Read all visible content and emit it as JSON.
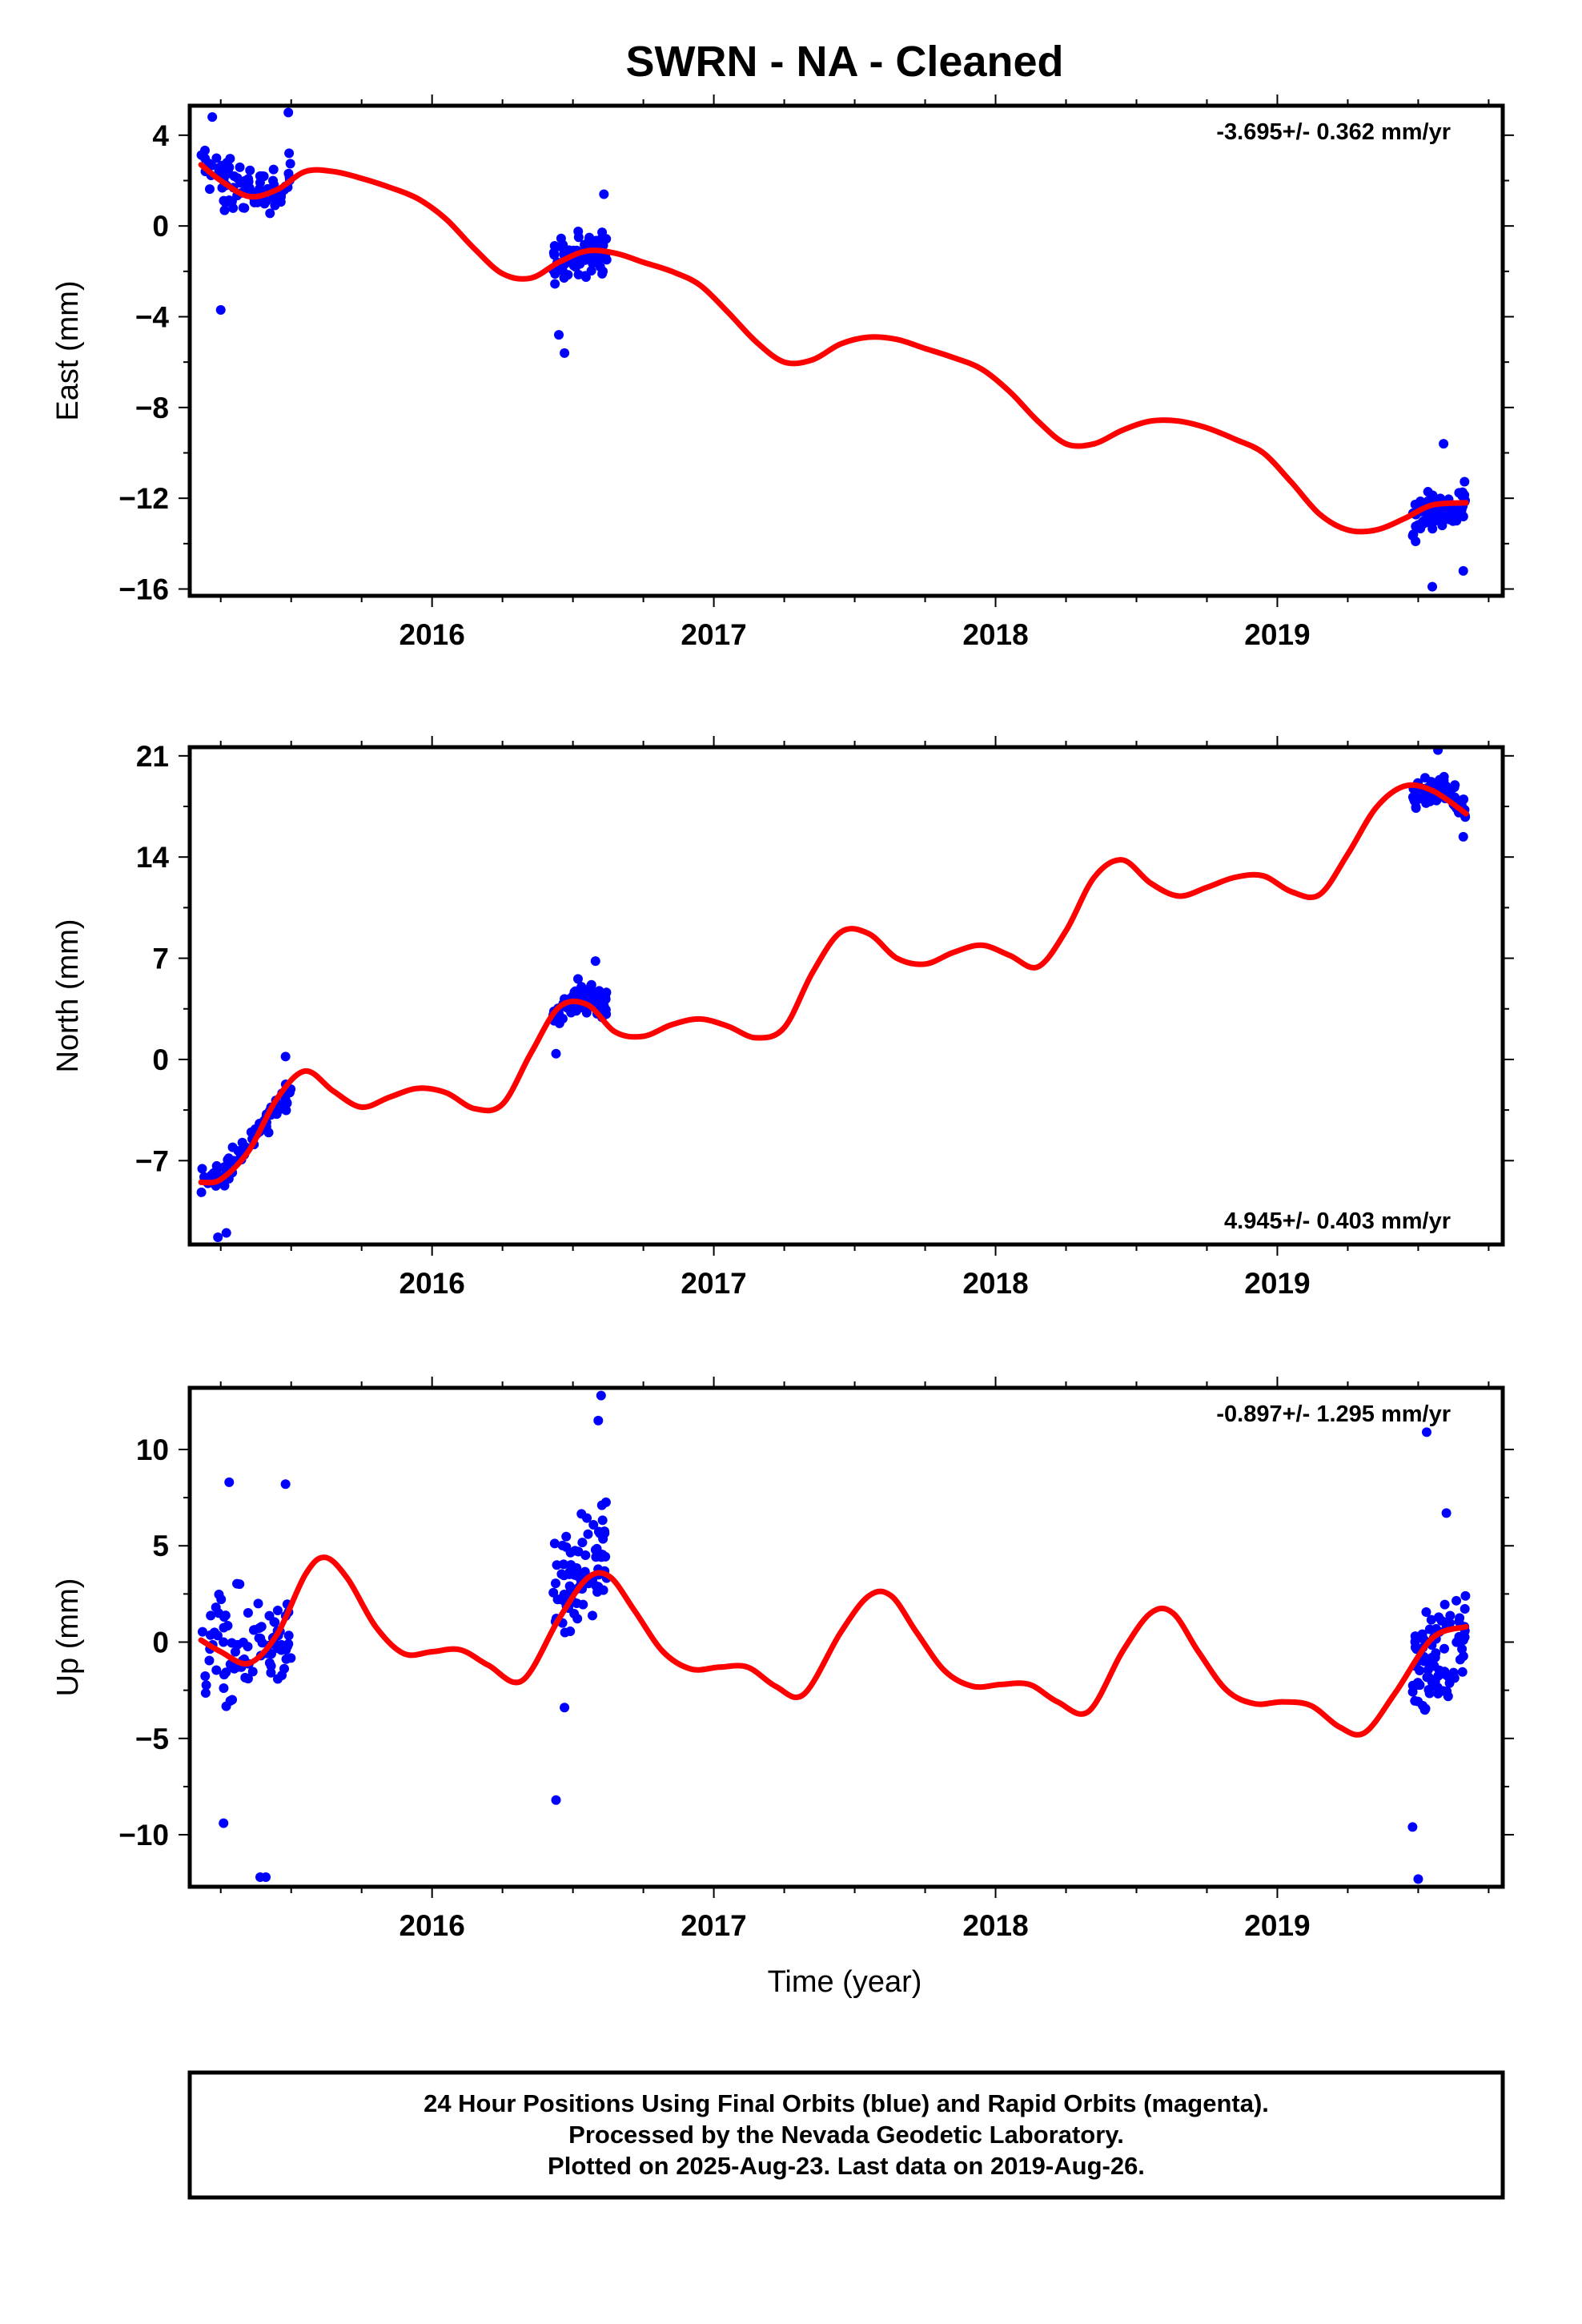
{
  "title": "SWRN  - NA - Cleaned",
  "colors": {
    "final_orbits": "#0000ff",
    "model_fit": "#ff0000",
    "frame": "#000000"
  },
  "footer": {
    "line1": "24 Hour Positions Using Final Orbits (blue) and Rapid Orbits (magenta).",
    "line2": "Processed by the Nevada Geodetic Laboratory.",
    "line3": "Plotted on 2025-Aug-23. Last data on 2019-Aug-26."
  },
  "chart_data": [
    {
      "type": "scatter",
      "component": "east",
      "ylabel": "East (mm)",
      "xlabel": "",
      "rate_label": "-3.695+/- 0.362 mm/yr",
      "rate_position": "top-right",
      "xlim": [
        2015.14,
        2019.8
      ],
      "ylim": [
        -16.3,
        5.3
      ],
      "yticks": [
        4,
        0,
        -4,
        -8,
        -12,
        -16
      ],
      "ytick_labels": [
        "4",
        "0",
        "−4",
        "−8",
        "−12",
        "−16"
      ],
      "xticks": [
        2016,
        2017,
        2018,
        2019
      ],
      "xtick_labels": [
        "2016",
        "2017",
        "2018",
        "2019"
      ],
      "series": [
        {
          "kind": "observations",
          "clusters": [
            {
              "x_range": [
                2015.18,
                2015.5
              ],
              "center": [
                [
                  2015.18,
                  2.7
                ],
                [
                  2015.32,
                  1.4
                ],
                [
                  2015.5,
                  2.0
                ]
              ],
              "spread": 1.4,
              "outliers": [
                [
                  2015.25,
                  -3.7
                ],
                [
                  2015.22,
                  4.8
                ],
                [
                  2015.49,
                  5.0
                ]
              ]
            },
            {
              "x_range": [
                2016.43,
                2016.62
              ],
              "center": [
                [
                  2016.43,
                  -1.6
                ],
                [
                  2016.62,
                  -1.0
                ]
              ],
              "spread": 1.2,
              "outliers": [
                [
                  2016.47,
                  -5.6
                ],
                [
                  2016.45,
                  -4.8
                ],
                [
                  2016.61,
                  1.4
                ]
              ]
            },
            {
              "x_range": [
                2019.48,
                2019.67
              ],
              "center": [
                [
                  2019.48,
                  -12.9
                ],
                [
                  2019.67,
                  -12.2
                ]
              ],
              "spread": 1.2,
              "outliers": [
                [
                  2019.55,
                  -15.9
                ],
                [
                  2019.59,
                  -9.6
                ],
                [
                  2019.66,
                  -15.2
                ]
              ]
            }
          ]
        },
        {
          "kind": "model_fit",
          "x": [
            2015.18,
            2015.25,
            2015.35,
            2015.45,
            2015.55,
            2015.65,
            2015.75,
            2015.85,
            2015.95,
            2016.05,
            2016.15,
            2016.25,
            2016.35,
            2016.45,
            2016.55,
            2016.65,
            2016.75,
            2016.85,
            2016.95,
            2017.05,
            2017.15,
            2017.25,
            2017.35,
            2017.45,
            2017.55,
            2017.65,
            2017.75,
            2017.85,
            2017.95,
            2018.05,
            2018.15,
            2018.25,
            2018.35,
            2018.45,
            2018.55,
            2018.65,
            2018.75,
            2018.85,
            2018.95,
            2019.05,
            2019.15,
            2019.25,
            2019.35,
            2019.45,
            2019.55,
            2019.67
          ],
          "y": [
            2.7,
            2.0,
            1.3,
            1.6,
            2.4,
            2.4,
            2.1,
            1.7,
            1.2,
            0.3,
            -1.0,
            -2.1,
            -2.3,
            -1.6,
            -1.1,
            -1.2,
            -1.6,
            -2.0,
            -2.6,
            -3.8,
            -5.1,
            -6.0,
            -5.9,
            -5.2,
            -4.9,
            -5.0,
            -5.4,
            -5.8,
            -6.3,
            -7.3,
            -8.6,
            -9.6,
            -9.6,
            -9.0,
            -8.6,
            -8.6,
            -8.9,
            -9.4,
            -10.0,
            -11.3,
            -12.7,
            -13.4,
            -13.4,
            -12.9,
            -12.3,
            -12.2
          ]
        }
      ]
    },
    {
      "type": "scatter",
      "component": "north",
      "ylabel": "North (mm)",
      "xlabel": "",
      "rate_label": "4.945+/- 0.403 mm/yr",
      "rate_position": "bottom-right",
      "xlim": [
        2015.14,
        2019.8
      ],
      "ylim": [
        -12.8,
        21.6
      ],
      "yticks": [
        21,
        14,
        7,
        0,
        -7
      ],
      "ytick_labels": [
        "21",
        "14",
        "7",
        "0",
        "−7"
      ],
      "xticks": [
        2016,
        2017,
        2018,
        2019
      ],
      "xtick_labels": [
        "2016",
        "2017",
        "2018",
        "2019"
      ],
      "series": [
        {
          "kind": "observations",
          "clusters": [
            {
              "x_range": [
                2015.18,
                2015.5
              ],
              "center": [
                [
                  2015.18,
                  -8.3
                ],
                [
                  2015.26,
                  -8.0
                ],
                [
                  2015.34,
                  -6.0
                ],
                [
                  2015.42,
                  -4.0
                ],
                [
                  2015.5,
                  -2.0
                ]
              ],
              "spread": 1.1,
              "outliers": [
                [
                  2015.24,
                  -12.3
                ],
                [
                  2015.27,
                  -12.0
                ],
                [
                  2015.48,
                  0.2
                ]
              ]
            },
            {
              "x_range": [
                2016.43,
                2016.62
              ],
              "center": [
                [
                  2016.43,
                  2.8
                ],
                [
                  2016.52,
                  4.5
                ],
                [
                  2016.62,
                  3.8
                ]
              ],
              "spread": 1.3,
              "outliers": [
                [
                  2016.44,
                  0.4
                ],
                [
                  2016.58,
                  6.8
                ]
              ]
            },
            {
              "x_range": [
                2019.48,
                2019.67
              ],
              "center": [
                [
                  2019.48,
                  18.0
                ],
                [
                  2019.58,
                  18.8
                ],
                [
                  2019.67,
                  17.2
                ]
              ],
              "spread": 1.2,
              "outliers": [
                [
                  2019.57,
                  21.4
                ],
                [
                  2019.66,
                  15.4
                ]
              ]
            }
          ]
        },
        {
          "kind": "model_fit",
          "x": [
            2015.18,
            2015.25,
            2015.35,
            2015.45,
            2015.55,
            2015.65,
            2015.75,
            2015.85,
            2015.95,
            2016.05,
            2016.15,
            2016.25,
            2016.35,
            2016.45,
            2016.55,
            2016.65,
            2016.75,
            2016.85,
            2016.95,
            2017.05,
            2017.15,
            2017.25,
            2017.35,
            2017.45,
            2017.55,
            2017.65,
            2017.75,
            2017.85,
            2017.95,
            2018.05,
            2018.15,
            2018.25,
            2018.35,
            2018.45,
            2018.55,
            2018.65,
            2018.75,
            2018.85,
            2018.95,
            2019.05,
            2019.15,
            2019.25,
            2019.35,
            2019.45,
            2019.55,
            2019.67
          ],
          "y": [
            -8.5,
            -8.3,
            -6.3,
            -2.7,
            -0.8,
            -2.2,
            -3.3,
            -2.6,
            -2.0,
            -2.3,
            -3.4,
            -3.1,
            0.4,
            3.6,
            3.8,
            1.9,
            1.6,
            2.4,
            2.8,
            2.3,
            1.5,
            2.2,
            6.0,
            8.8,
            8.7,
            7.0,
            6.6,
            7.4,
            7.9,
            7.2,
            6.4,
            8.9,
            12.6,
            13.8,
            12.2,
            11.3,
            11.9,
            12.6,
            12.7,
            11.6,
            11.4,
            14.2,
            17.4,
            18.9,
            18.6,
            17.0
          ]
        }
      ]
    },
    {
      "type": "scatter",
      "component": "up",
      "ylabel": "Up (mm)",
      "xlabel": "Time (year)",
      "rate_label": "-0.897+/- 1.295 mm/yr",
      "rate_position": "top-right",
      "xlim": [
        2015.14,
        2019.8
      ],
      "ylim": [
        -12.7,
        13.2
      ],
      "yticks": [
        10,
        5,
        0,
        -5,
        -10
      ],
      "ytick_labels": [
        "10",
        "5",
        "0",
        "−5",
        "−10"
      ],
      "xticks": [
        2016,
        2017,
        2018,
        2019
      ],
      "xtick_labels": [
        "2016",
        "2017",
        "2018",
        "2019"
      ],
      "series": [
        {
          "kind": "observations",
          "clusters": [
            {
              "x_range": [
                2015.18,
                2015.5
              ],
              "center": [
                [
                  2015.18,
                  -0.5
                ],
                [
                  2015.34,
                  -0.4
                ],
                [
                  2015.5,
                  0.5
                ]
              ],
              "spread": 3.6,
              "outliers": [
                [
                  2015.26,
                  -9.4
                ],
                [
                  2015.39,
                  -12.2
                ],
                [
                  2015.41,
                  -12.2
                ],
                [
                  2015.28,
                  8.3
                ],
                [
                  2015.48,
                  8.2
                ]
              ]
            },
            {
              "x_range": [
                2016.43,
                2016.62
              ],
              "center": [
                [
                  2016.43,
                  2.0
                ],
                [
                  2016.52,
                  3.5
                ],
                [
                  2016.62,
                  5.0
                ]
              ],
              "spread": 3.2,
              "outliers": [
                [
                  2016.44,
                  -8.2
                ],
                [
                  2016.47,
                  -3.4
                ],
                [
                  2016.6,
                  12.8
                ],
                [
                  2016.59,
                  11.5
                ]
              ]
            },
            {
              "x_range": [
                2019.48,
                2019.67
              ],
              "center": [
                [
                  2019.48,
                  -1.5
                ],
                [
                  2019.58,
                  -0.8
                ],
                [
                  2019.67,
                  0.5
                ]
              ],
              "spread": 3.2,
              "outliers": [
                [
                  2019.5,
                  -12.3
                ],
                [
                  2019.48,
                  -9.6
                ],
                [
                  2019.53,
                  10.9
                ],
                [
                  2019.6,
                  6.7
                ]
              ]
            }
          ]
        },
        {
          "kind": "model_fit",
          "x": [
            2015.18,
            2015.25,
            2015.35,
            2015.45,
            2015.55,
            2015.62,
            2015.7,
            2015.8,
            2015.9,
            2016.0,
            2016.1,
            2016.2,
            2016.32,
            2016.45,
            2016.55,
            2016.63,
            2016.72,
            2016.82,
            2016.92,
            2017.02,
            2017.12,
            2017.22,
            2017.32,
            2017.45,
            2017.55,
            2017.63,
            2017.72,
            2017.82,
            2017.92,
            2018.02,
            2018.12,
            2018.22,
            2018.33,
            2018.45,
            2018.55,
            2018.63,
            2018.72,
            2018.82,
            2018.92,
            2019.02,
            2019.12,
            2019.22,
            2019.31,
            2019.42,
            2019.55,
            2019.67
          ],
          "y": [
            0.1,
            -0.5,
            -1.1,
            0.4,
            3.5,
            4.4,
            3.3,
            0.8,
            -0.6,
            -0.5,
            -0.4,
            -1.2,
            -2.0,
            1.2,
            3.3,
            3.4,
            1.6,
            -0.5,
            -1.4,
            -1.3,
            -1.3,
            -2.3,
            -2.7,
            0.5,
            2.4,
            2.4,
            0.5,
            -1.5,
            -2.3,
            -2.2,
            -2.2,
            -3.1,
            -3.6,
            -0.5,
            1.5,
            1.5,
            -0.5,
            -2.5,
            -3.2,
            -3.1,
            -3.3,
            -4.4,
            -4.7,
            -2.6,
            0.2,
            0.8
          ]
        }
      ]
    }
  ]
}
